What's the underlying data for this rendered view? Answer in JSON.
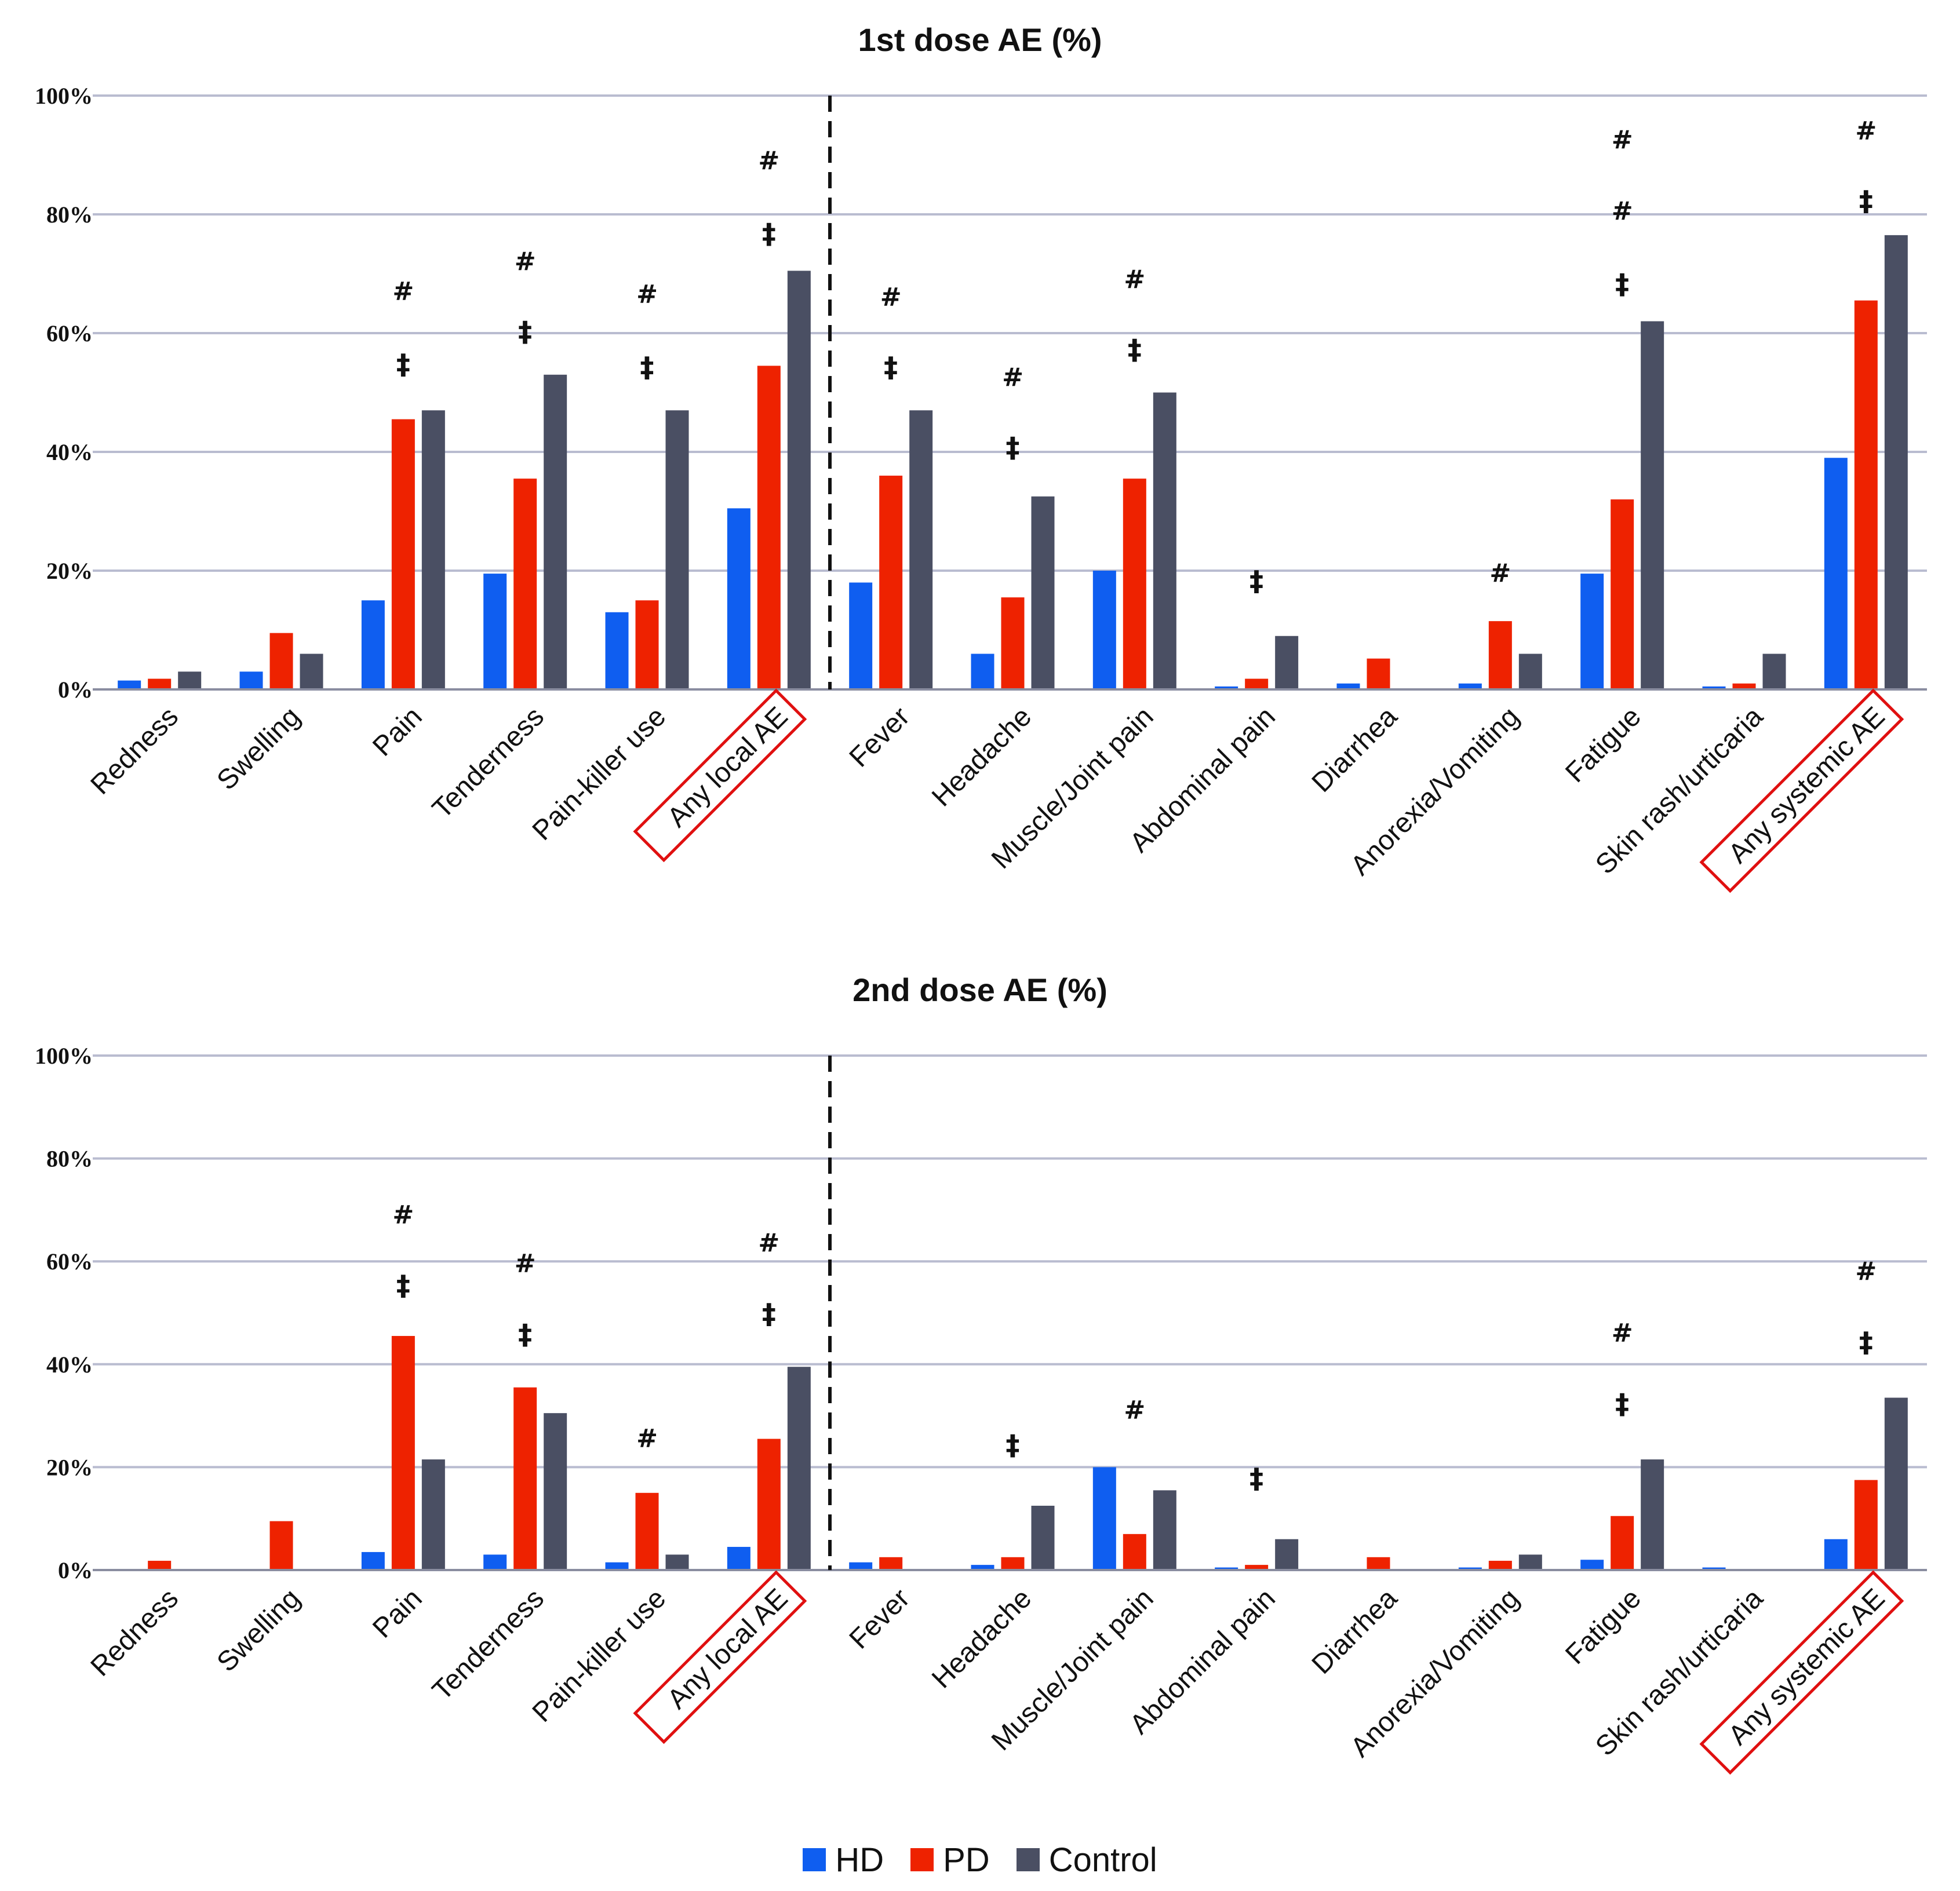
{
  "colors": {
    "HD": "#0f5ef0",
    "PD": "#ee2200",
    "Control": "#4a4f63",
    "highlight_box": "#e01010",
    "gridline": "#b9bcd0"
  },
  "legend": [
    {
      "name": "HD",
      "color": "#0f5ef0"
    },
    {
      "name": "PD",
      "color": "#ee2200"
    },
    {
      "name": "Control",
      "color": "#4a4f63"
    }
  ],
  "chart_data": [
    {
      "type": "bar",
      "title": "1st dose AE (%)",
      "xlabel": "",
      "ylabel": "",
      "ylim": [
        0,
        100
      ],
      "yticks": [
        "0%",
        "20%",
        "40%",
        "60%",
        "80%",
        "100%"
      ],
      "grid": true,
      "divider_after_index": 5,
      "categories": [
        "Redness",
        "Swelling",
        "Pain",
        "Tenderness",
        "Pain-killer use",
        "Any local AE",
        "Fever",
        "Headache",
        "Muscle/Joint pain",
        "Abdominal pain",
        "Diarrhea",
        "Anorexia/Vomiting",
        "Fatigue",
        "Skin rash/urticaria",
        "Any systemic AE"
      ],
      "highlighted_categories": [
        "Any local AE",
        "Any systemic AE"
      ],
      "series": [
        {
          "name": "HD",
          "values": [
            1.5,
            3,
            15,
            19.5,
            13,
            30.5,
            18,
            6,
            20,
            0.5,
            1,
            1,
            19.5,
            0.5,
            39
          ]
        },
        {
          "name": "PD",
          "values": [
            1.8,
            9.5,
            45.5,
            35.5,
            15,
            54.5,
            36,
            15.5,
            35.5,
            1.8,
            5.2,
            11.5,
            32,
            1,
            65.5
          ]
        },
        {
          "name": "Control",
          "values": [
            3,
            6,
            47,
            53,
            47,
            70.5,
            47,
            32.5,
            50,
            9,
            0,
            6,
            62,
            6,
            76.5
          ]
        }
      ],
      "annotations": [
        {
          "category": "Pain",
          "symbol": "‡",
          "y": 54.5
        },
        {
          "category": "Pain",
          "symbol": "#",
          "y": 67
        },
        {
          "category": "Tenderness",
          "symbol": "‡",
          "y": 60
        },
        {
          "category": "Tenderness",
          "symbol": "#",
          "y": 72
        },
        {
          "category": "Pain-killer use",
          "symbol": "‡",
          "y": 54
        },
        {
          "category": "Pain-killer use",
          "symbol": "#",
          "y": 66.5
        },
        {
          "category": "Any local AE",
          "symbol": "‡",
          "y": 76.5
        },
        {
          "category": "Any local AE",
          "symbol": "#",
          "y": 89
        },
        {
          "category": "Fever",
          "symbol": "‡",
          "y": 54
        },
        {
          "category": "Fever",
          "symbol": "#",
          "y": 66
        },
        {
          "category": "Headache",
          "symbol": "‡",
          "y": 40.5
        },
        {
          "category": "Headache",
          "symbol": "#",
          "y": 52.5
        },
        {
          "category": "Muscle/Joint pain",
          "symbol": "‡",
          "y": 57
        },
        {
          "category": "Muscle/Joint pain",
          "symbol": "#",
          "y": 69
        },
        {
          "category": "Abdominal pain",
          "symbol": "‡",
          "y": 18
        },
        {
          "category": "Anorexia/Vomiting",
          "symbol": "#",
          "y": 19.5
        },
        {
          "category": "Fatigue",
          "symbol": "‡",
          "y": 68
        },
        {
          "category": "Fatigue",
          "symbol": "#",
          "y": 80.5
        },
        {
          "category": "Fatigue",
          "symbol": "#",
          "y": 92.5
        },
        {
          "category": "Any systemic AE",
          "symbol": "‡",
          "y": 82
        },
        {
          "category": "Any systemic AE",
          "symbol": "#",
          "y": 94
        }
      ]
    },
    {
      "type": "bar",
      "title": "2nd dose AE (%)",
      "xlabel": "",
      "ylabel": "",
      "ylim": [
        0,
        100
      ],
      "yticks": [
        "0%",
        "20%",
        "40%",
        "60%",
        "80%",
        "100%"
      ],
      "grid": true,
      "divider_after_index": 5,
      "categories": [
        "Redness",
        "Swelling",
        "Pain",
        "Tenderness",
        "Pain-killer use",
        "Any local AE",
        "Fever",
        "Headache",
        "Muscle/Joint pain",
        "Abdominal pain",
        "Diarrhea",
        "Anorexia/Vomiting",
        "Fatigue",
        "Skin rash/urticaria",
        "Any systemic AE"
      ],
      "highlighted_categories": [
        "Any local AE",
        "Any systemic AE"
      ],
      "series": [
        {
          "name": "HD",
          "values": [
            0,
            0,
            3.5,
            3,
            1.5,
            4.5,
            1.5,
            1,
            20,
            0.5,
            0,
            0.5,
            2,
            0.5,
            6
          ]
        },
        {
          "name": "PD",
          "values": [
            1.8,
            9.5,
            45.5,
            35.5,
            15,
            25.5,
            2.5,
            2.5,
            7,
            1,
            2.5,
            1.8,
            10.5,
            0,
            17.5
          ]
        },
        {
          "name": "Control",
          "values": [
            0,
            0,
            21.5,
            30.5,
            3,
            39.5,
            0,
            12.5,
            15.5,
            6,
            0,
            3,
            21.5,
            0,
            33.5
          ]
        }
      ],
      "annotations": [
        {
          "category": "Pain",
          "symbol": "‡",
          "y": 55
        },
        {
          "category": "Pain",
          "symbol": "#",
          "y": 69
        },
        {
          "category": "Tenderness",
          "symbol": "‡",
          "y": 45.5
        },
        {
          "category": "Tenderness",
          "symbol": "#",
          "y": 59.5
        },
        {
          "category": "Pain-killer use",
          "symbol": "#",
          "y": 25.5
        },
        {
          "category": "Any local AE",
          "symbol": "‡",
          "y": 49.5
        },
        {
          "category": "Any local AE",
          "symbol": "#",
          "y": 63.5
        },
        {
          "category": "Headache",
          "symbol": "‡",
          "y": 24
        },
        {
          "category": "Muscle/Joint pain",
          "symbol": "#",
          "y": 31
        },
        {
          "category": "Abdominal pain",
          "symbol": "‡",
          "y": 17.5
        },
        {
          "category": "Fatigue",
          "symbol": "‡",
          "y": 32
        },
        {
          "category": "Fatigue",
          "symbol": "#",
          "y": 46
        },
        {
          "category": "Any systemic AE",
          "symbol": "‡",
          "y": 44
        },
        {
          "category": "Any systemic AE",
          "symbol": "#",
          "y": 58
        }
      ]
    }
  ]
}
